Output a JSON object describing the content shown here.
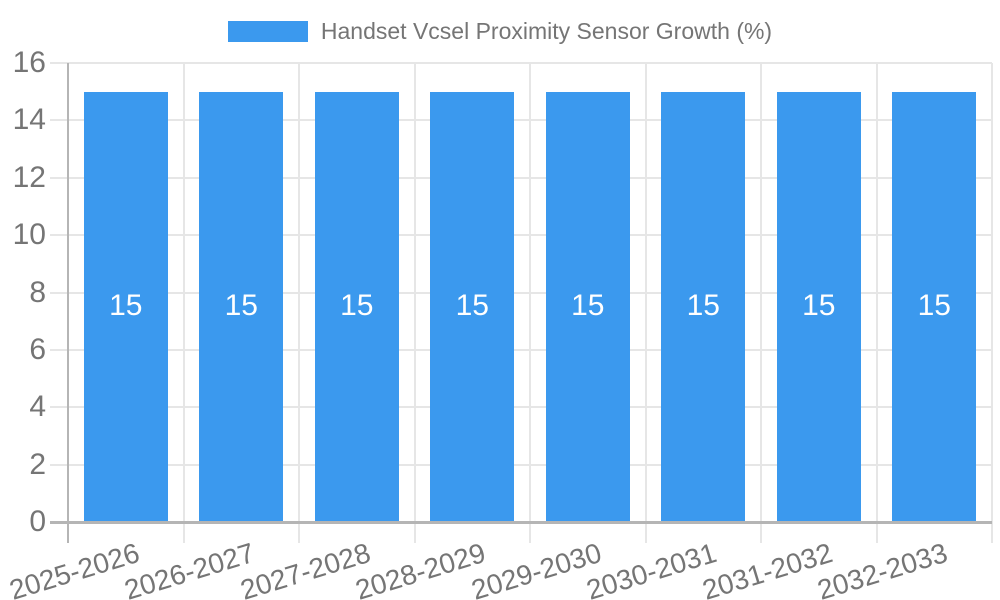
{
  "legend": {
    "swatch_color": "#3B99EE",
    "label": "Handset Vcsel Proximity Sensor Growth (%)"
  },
  "chart_data": {
    "type": "bar",
    "title": "Handset Vcsel Proximity Sensor Growth (%)",
    "categories": [
      "2025-2026",
      "2026-2027",
      "2027-2028",
      "2028-2029",
      "2029-2030",
      "2030-2031",
      "2031-2032",
      "2032-2033"
    ],
    "values": [
      15,
      15,
      15,
      15,
      15,
      15,
      15,
      15
    ],
    "bar_value_labels": [
      "15",
      "15",
      "15",
      "15",
      "15",
      "15",
      "15",
      "15"
    ],
    "xlabel": "",
    "ylabel": "",
    "ylim": [
      0,
      16
    ],
    "yticks": [
      0,
      2,
      4,
      6,
      8,
      10,
      12,
      14,
      16
    ],
    "grid": "on",
    "legend_position": "top-center",
    "x_tick_rotation_deg": -17
  },
  "colors": {
    "bar": "#3B99EE",
    "grid": "#e6e6e6",
    "axis": "#b5b5b5",
    "tick_label": "#757575",
    "legend_label": "#757575",
    "value_label": "#ffffff",
    "background": "#ffffff"
  }
}
